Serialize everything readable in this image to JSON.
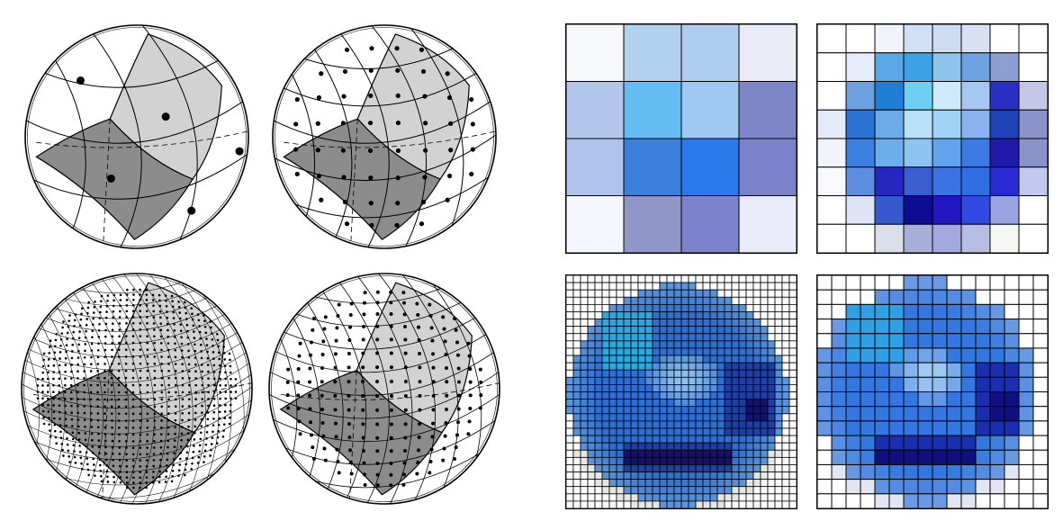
{
  "figure": {
    "spheres": [
      {
        "id": "sphere-nside-1",
        "nside": 1
      },
      {
        "id": "sphere-nside-2",
        "nside": 2
      },
      {
        "id": "sphere-nside-8",
        "nside": 8
      },
      {
        "id": "sphere-nside-4",
        "nside": 4
      }
    ],
    "sphere_colors": {
      "face_light": "#d2d2d2",
      "face_dark": "#8c8c8c",
      "outline": "#000000",
      "background": "#ffffff"
    },
    "pixel_maps": [
      {
        "id": "map-4x4",
        "cells": [
          [
            "#f7f8fb",
            "#b2d1ee",
            "#b0cded",
            "#e9ecf7"
          ],
          [
            "#b3c6ec",
            "#66bdf3",
            "#9ec8f2",
            "#7d87c8"
          ],
          [
            "#b0c3ec",
            "#3b7fdc",
            "#2b79ec",
            "#7b82cc"
          ],
          [
            "#f4f7fd",
            "#9196c8",
            "#7c81cc",
            "#e9ebf8"
          ]
        ]
      },
      {
        "id": "map-8x8",
        "cells": [
          [
            "#ffffff",
            "#ffffff",
            "#f2f4fb",
            "#cfe0f5",
            "#cddbf3",
            "#d7e1f3",
            "#ffffff",
            "#ffffff"
          ],
          [
            "#ffffff",
            "#e5eef9",
            "#5ba8e8",
            "#3ea3e6",
            "#8ec4ee",
            "#6ca3e3",
            "#8d9ed2",
            "#ffffff"
          ],
          [
            "#ffffff",
            "#6e9fe0",
            "#1f7fd6",
            "#6cd0f5",
            "#cfe9fb",
            "#a8c6f2",
            "#2a2fc3",
            "#c4c8e8"
          ],
          [
            "#e3eaf9",
            "#2b72d5",
            "#6aabe8",
            "#b7e2f8",
            "#9fd2f5",
            "#8ab2ee",
            "#1f42b8",
            "#8a93c9"
          ],
          [
            "#f2f4fb",
            "#3b80e0",
            "#6aaeed",
            "#8ec4f2",
            "#5fa4ec",
            "#3b7ae6",
            "#2018a8",
            "#8a93c9"
          ],
          [
            "#f7f9fd",
            "#5d8ee2",
            "#2626c0",
            "#3a5ed0",
            "#3a73e3",
            "#2e6fe6",
            "#2a2ad6",
            "#c3c8ee"
          ],
          [
            "#ffffff",
            "#dde4f6",
            "#3559cf",
            "#0e0c93",
            "#2116c2",
            "#3049e0",
            "#9aa5e5",
            "#ffffff"
          ],
          [
            "#ffffff",
            "#ffffff",
            "#dbdfe9",
            "#a7afd6",
            "#a5a8dd",
            "#b7bde0",
            "#f5f7f2",
            "#ffffff"
          ]
        ]
      },
      {
        "id": "map-32x32",
        "sphere": {
          "center": [
            15.5,
            16.5
          ],
          "radius": 15.2
        },
        "colors": {
          "background": "#ffffff",
          "rim": "#5a97de",
          "base": "#2e6fd6",
          "light": "#8fc3ef",
          "cyan": "#28a9e6",
          "dark": "#1d3fa6",
          "darkest": "#14126e",
          "shadow": "#e6e6e3"
        }
      },
      {
        "id": "map-16x16",
        "sphere": {
          "center": [
            7.5,
            8.0
          ],
          "radius": 7.6
        },
        "colors": {
          "background": "#ffffff",
          "rim": "#6b9be4",
          "base": "#3377e0",
          "light": "#a8d0f2",
          "cyan": "#2f9fe6",
          "dark": "#1a2fb0",
          "darkest": "#10107f",
          "shadow": "#e3e6f2"
        }
      }
    ]
  }
}
